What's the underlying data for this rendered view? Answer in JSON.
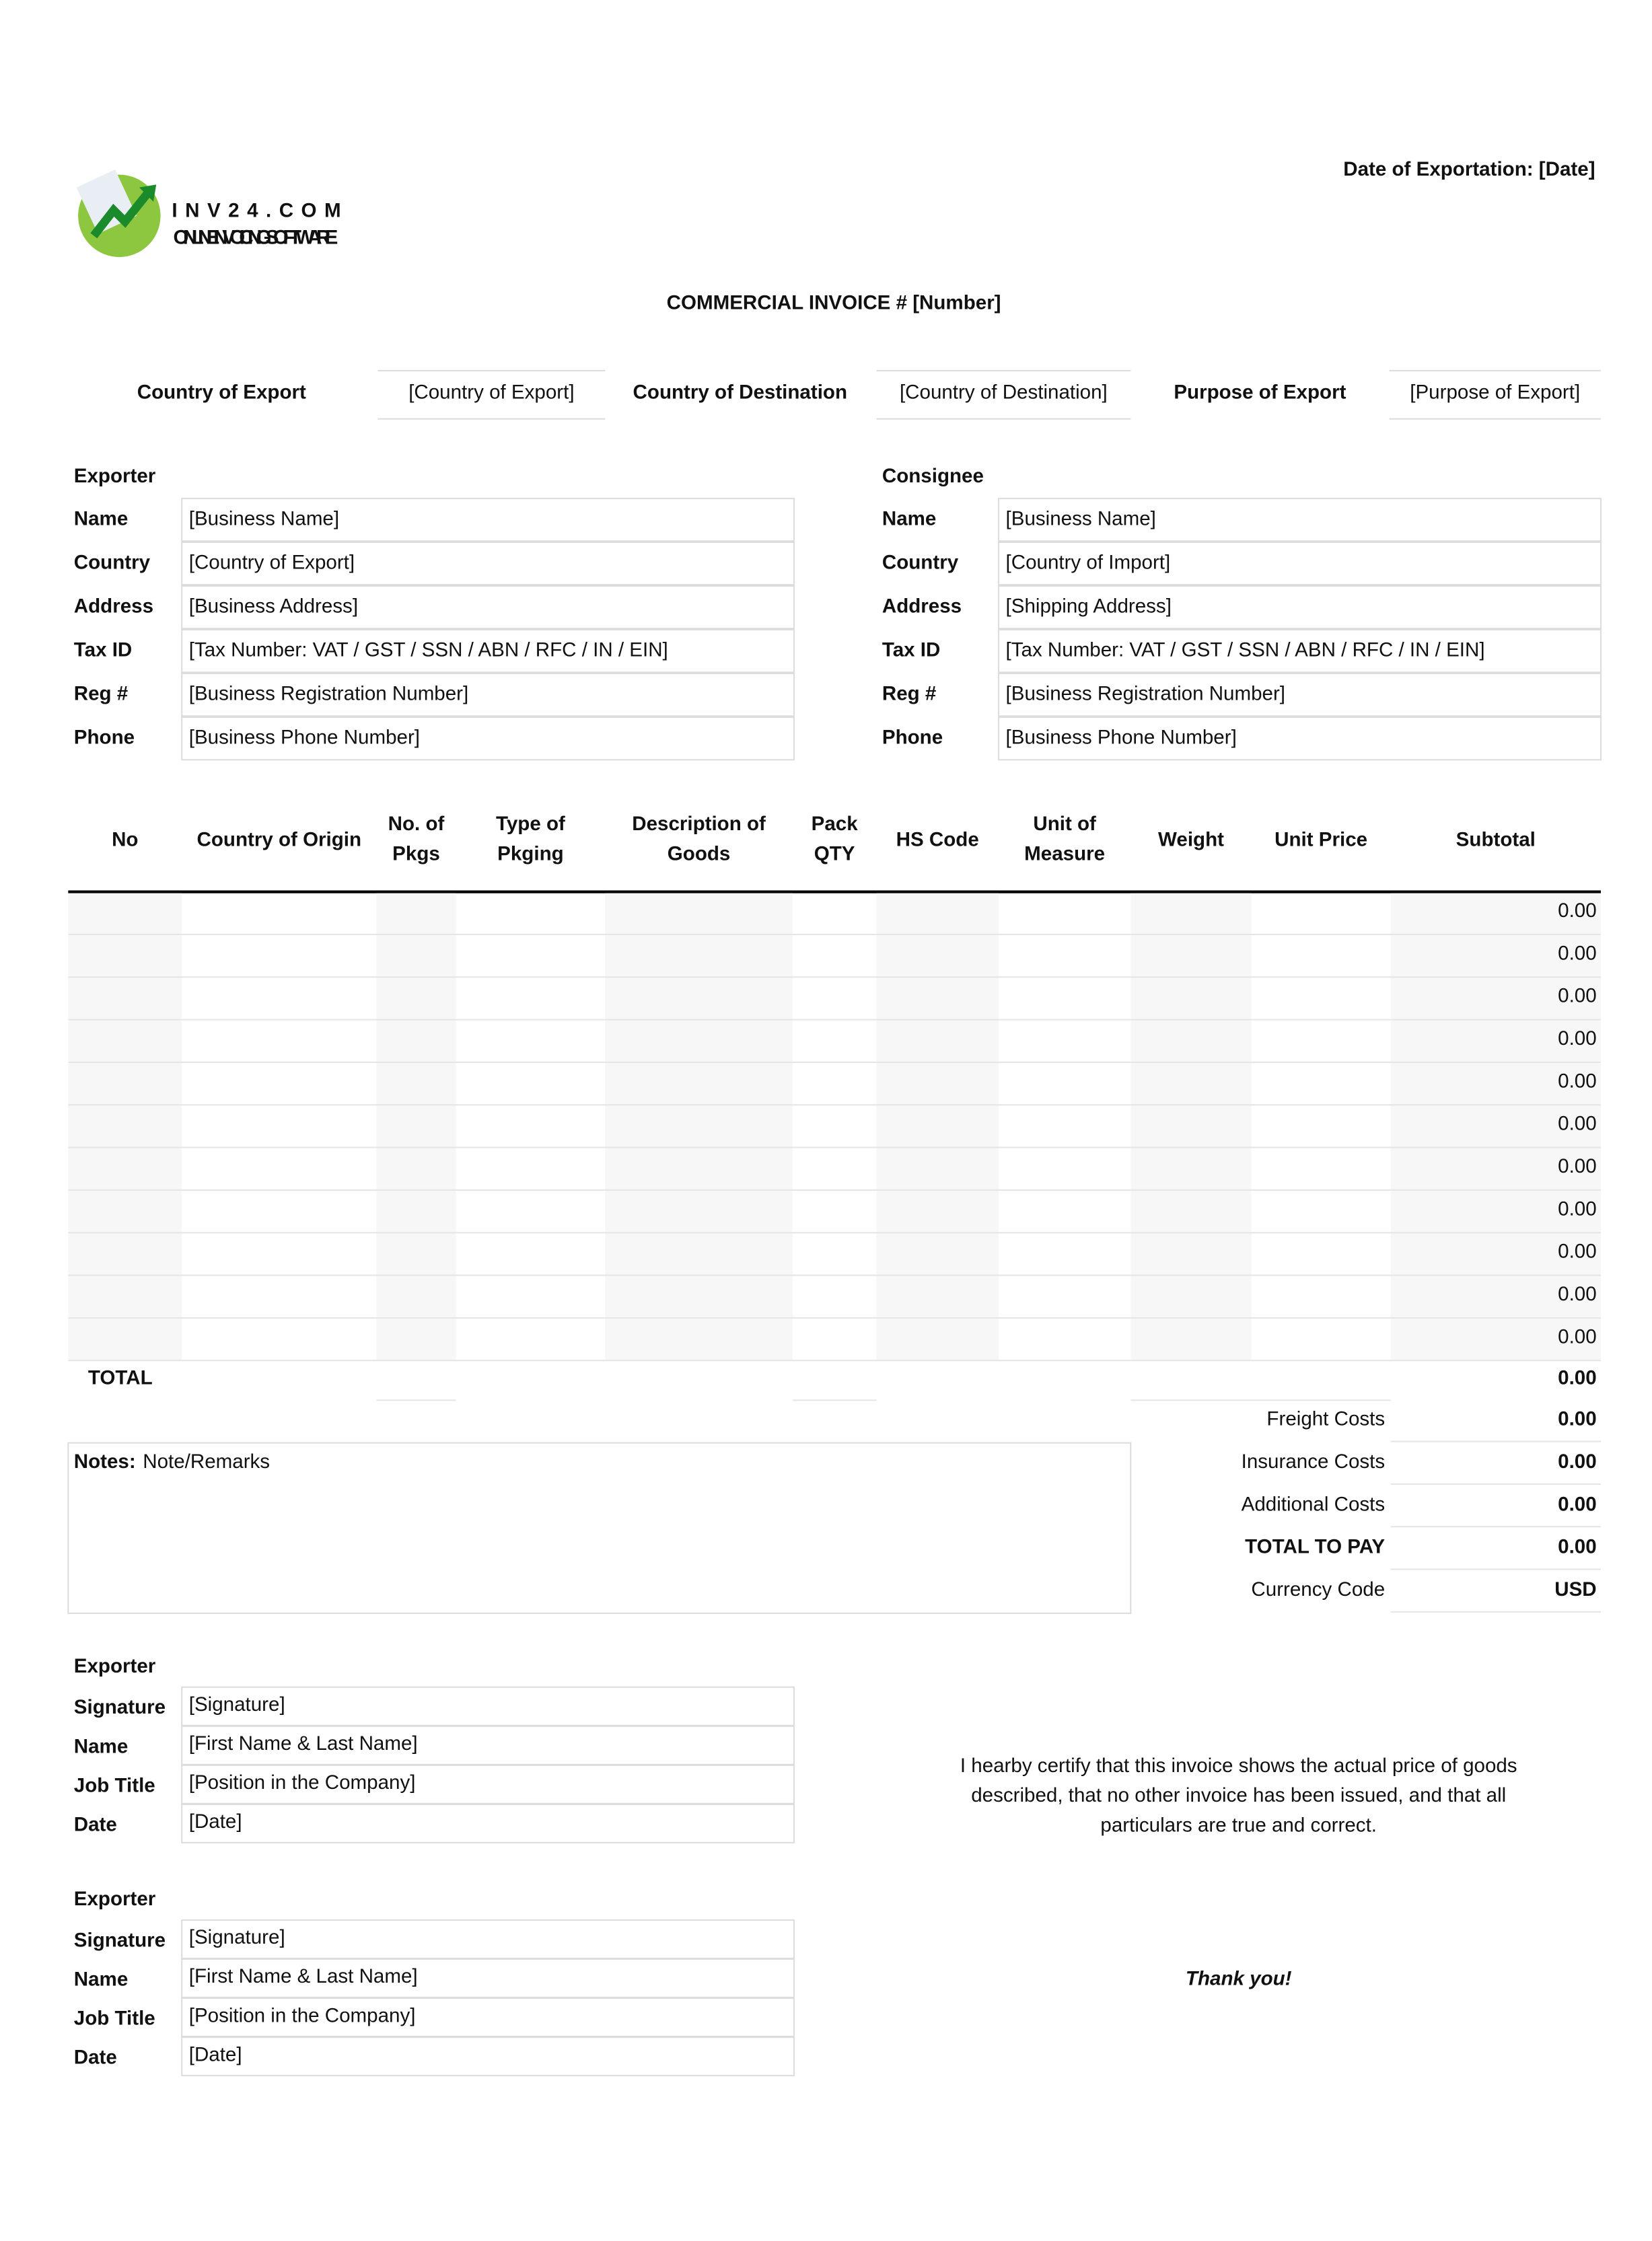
{
  "header": {
    "date_label": "Date of Exportation: [Date]",
    "logo_name": "INV24.COM",
    "logo_tagline": "ONLINE INVOICING SOFTWARE",
    "title": "COMMERCIAL INVOICE # [Number]"
  },
  "export_info": [
    [
      "Country of Export",
      "[Country of Export]"
    ],
    [
      "Country of Destination",
      "[Country of Destination]"
    ],
    [
      "Purpose of Export",
      "[Purpose of Export]"
    ]
  ],
  "exporter": {
    "heading": "Exporter",
    "rows": [
      [
        "Name",
        "[Business Name]"
      ],
      [
        "Country",
        "[Country of Export]"
      ],
      [
        "Address",
        "[Business Address]"
      ],
      [
        "Tax ID",
        "[Tax Number: VAT / GST / SSN / ABN / RFC / IN / EIN]"
      ],
      [
        "Reg #",
        "[Business Registration Number]"
      ],
      [
        "Phone",
        "[Business Phone Number]"
      ]
    ]
  },
  "consignee": {
    "heading": "Consignee",
    "rows": [
      [
        "Name",
        "[Business Name]"
      ],
      [
        "Country",
        "[Country of Import]"
      ],
      [
        "Address",
        "[Shipping Address]"
      ],
      [
        "Tax ID",
        "[Tax Number: VAT / GST / SSN / ABN / RFC / IN / EIN]"
      ],
      [
        "Reg #",
        "[Business Registration Number]"
      ],
      [
        "Phone",
        "[Business Phone Number]"
      ]
    ]
  },
  "items": {
    "columns": [
      [
        "No"
      ],
      [
        "Country of Origin"
      ],
      [
        "No. of",
        "Pkgs"
      ],
      [
        "Type of",
        "Pkging"
      ],
      [
        "Description of",
        "Goods"
      ],
      [
        "Pack",
        "QTY"
      ],
      [
        "HS Code"
      ],
      [
        "Unit of",
        "Measure"
      ],
      [
        "Weight"
      ],
      [
        "Unit Price"
      ],
      [
        "Subtotal"
      ]
    ],
    "subtotals": [
      "0.00",
      "0.00",
      "0.00",
      "0.00",
      "0.00",
      "0.00",
      "0.00",
      "0.00",
      "0.00",
      "0.00",
      "0.00"
    ],
    "total_label": "TOTAL",
    "total": "0.00"
  },
  "costs": [
    [
      "Freight Costs",
      "0.00"
    ],
    [
      "Insurance Costs",
      "0.00"
    ],
    [
      "Additional Costs",
      "0.00"
    ],
    [
      "TOTAL TO PAY",
      "0.00"
    ],
    [
      "Currency Code",
      "USD"
    ]
  ],
  "notes": {
    "label": "Notes:",
    "text": "Note/Remarks"
  },
  "signatures": [
    {
      "heading": "Exporter",
      "rows": [
        [
          "Signature",
          "[Signature]"
        ],
        [
          "Name",
          "[First Name & Last Name]"
        ],
        [
          "Job Title",
          "[Position in the Company]"
        ],
        [
          "Date",
          "[Date]"
        ]
      ]
    },
    {
      "heading": "Exporter",
      "rows": [
        [
          "Signature",
          "[Signature]"
        ],
        [
          "Name",
          "[First Name & Last Name]"
        ],
        [
          "Job Title",
          "[Position in the Company]"
        ],
        [
          "Date",
          "[Date]"
        ]
      ]
    }
  ],
  "certification": [
    "I hearby certify that this invoice shows the actual price of goods",
    "described, that no other invoice has been issued, and that all",
    "particulars are true and correct."
  ],
  "thank_you": "Thank you!"
}
